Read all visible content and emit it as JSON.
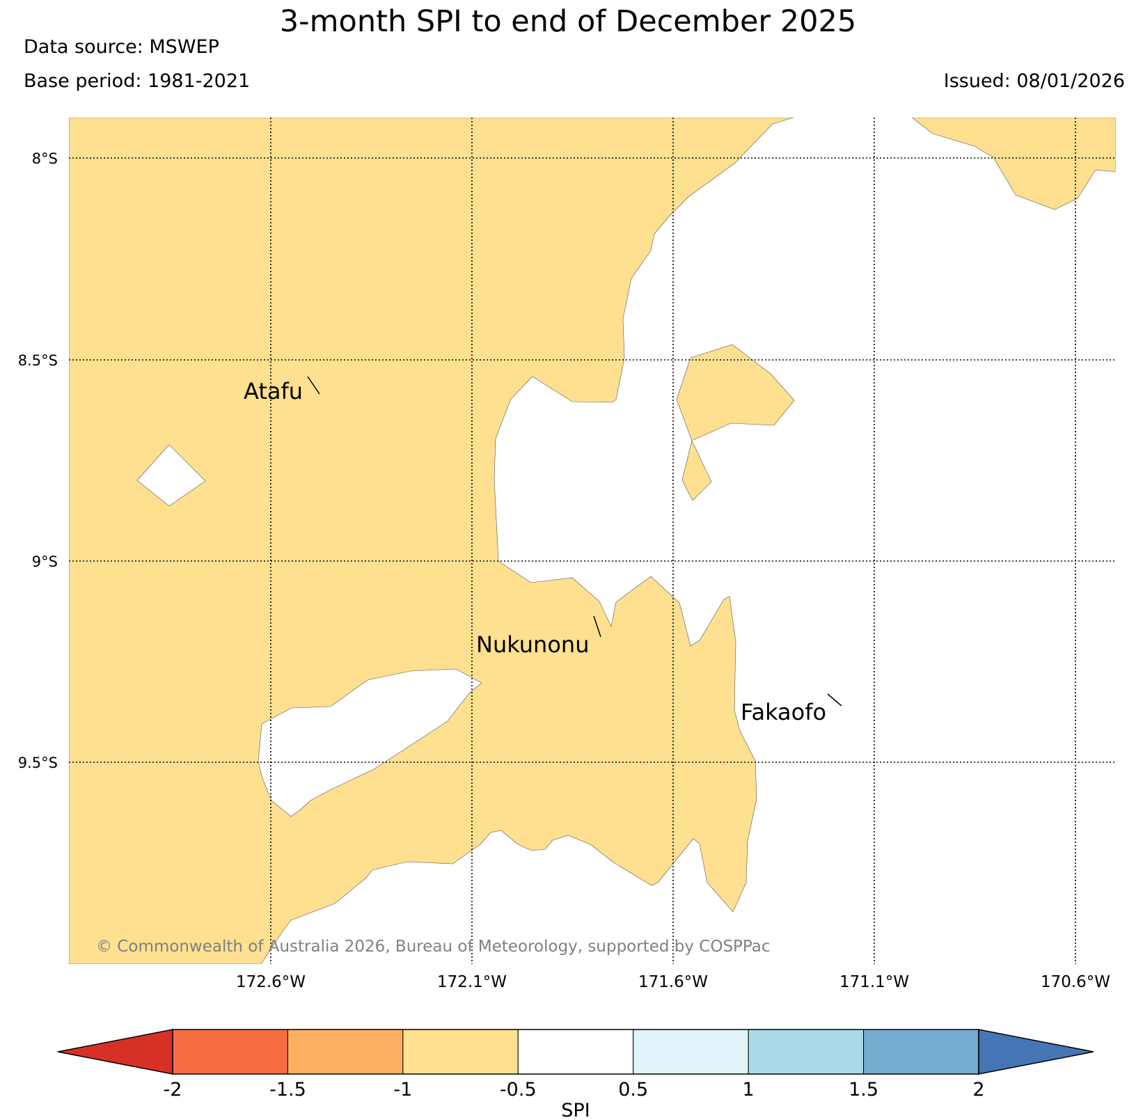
{
  "header": {
    "title": "3-month SPI to end of December 2025",
    "data_source": "Data source: MSWEP",
    "base_period": "Base period: 1981-2021",
    "issued": "Issued: 08/01/2026"
  },
  "map": {
    "latitude_labels": [
      "8°S",
      "8.5°S",
      "9°S",
      "9.5°S"
    ],
    "longitude_labels": [
      "172.6°W",
      "172.1°W",
      "171.6°W",
      "171.1°W",
      "170.6°W"
    ],
    "places": [
      {
        "name": "Atafu"
      },
      {
        "name": "Nukunonu"
      },
      {
        "name": "Fakaofo"
      }
    ],
    "fill_color": "#fee090",
    "fill_category": "-1 to -0.5",
    "copyright": "© Commonwealth of Australia 2026, Bureau of Meteorology, supported by COSPPac"
  },
  "colorbar": {
    "label": "SPI",
    "ticks": [
      "-2",
      "-1.5",
      "-1",
      "-0.5",
      "0.5",
      "1",
      "1.5",
      "2"
    ],
    "bins": [
      {
        "range": "< -2",
        "color": "#d73027"
      },
      {
        "range": "-2 to -1.5",
        "color": "#f46d43"
      },
      {
        "range": "-1.5 to -1",
        "color": "#fdae61"
      },
      {
        "range": "-1 to -0.5",
        "color": "#fee090"
      },
      {
        "range": "-0.5 to 0.5",
        "color": "#ffffff"
      },
      {
        "range": "0.5 to 1",
        "color": "#e0f3f8"
      },
      {
        "range": "1 to 1.5",
        "color": "#abd9e9"
      },
      {
        "range": "1.5 to 2",
        "color": "#74add1"
      },
      {
        "range": "> 2",
        "color": "#4575b4"
      }
    ]
  }
}
